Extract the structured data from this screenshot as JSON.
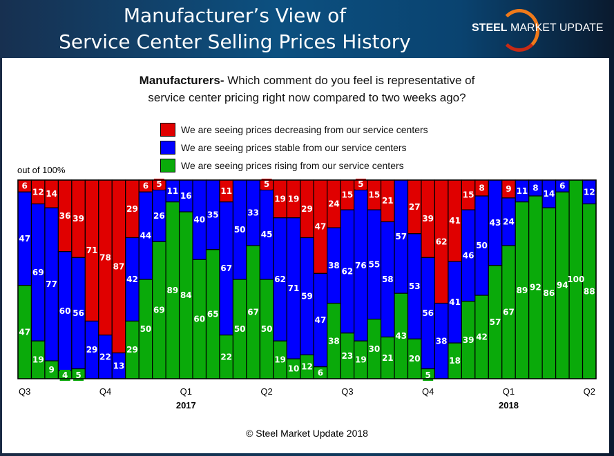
{
  "header": {
    "title_line1": "Manufacturer’s View of",
    "title_line2": "Service Center Selling Prices History",
    "logo": "STEEL MARKET UPDATE"
  },
  "question": {
    "bold": "Manufacturers-",
    "line1": " Which comment do you feel is representative of",
    "line2": "service center pricing right now compared to two weeks ago?"
  },
  "footer": {
    "copyright": "© Steel Market Update 2018"
  },
  "chart_data": {
    "type": "bar",
    "stacked": true,
    "ylabel": "out of 100%",
    "ylim": [
      0,
      100
    ],
    "colors": {
      "decreasing": "#e00000",
      "stable": "#0000ff",
      "rising": "#0aaa0a"
    },
    "legend": [
      "We are seeing prices decreasing from our service centers",
      "We are seeing prices stable from our service centers",
      "We are seeing prices rising from our service centers"
    ],
    "x_ticks": [
      {
        "bar": 0,
        "label": "Q3"
      },
      {
        "bar": 6,
        "label": "Q4"
      },
      {
        "bar": 12,
        "label": "Q1",
        "year": "2017"
      },
      {
        "bar": 18,
        "label": "Q2"
      },
      {
        "bar": 24,
        "label": "Q3"
      },
      {
        "bar": 30,
        "label": "Q4"
      },
      {
        "bar": 36,
        "label": "Q1",
        "year": "2018"
      },
      {
        "bar": 42,
        "label": "Q2"
      }
    ],
    "series": [
      {
        "name": "We are seeing prices decreasing from our service centers",
        "values": [
          6,
          12,
          14,
          36,
          39,
          71,
          78,
          87,
          29,
          6,
          5,
          0,
          0,
          0,
          0,
          11,
          0,
          0,
          5,
          19,
          19,
          29,
          47,
          24,
          15,
          5,
          15,
          21,
          0,
          27,
          39,
          62,
          41,
          15,
          8,
          0,
          9,
          0,
          0,
          0,
          0,
          0,
          0
        ]
      },
      {
        "name": "We are seeing prices stable from our service centers",
        "values": [
          47,
          69,
          77,
          60,
          56,
          29,
          22,
          13,
          42,
          44,
          26,
          11,
          16,
          40,
          35,
          67,
          50,
          33,
          45,
          62,
          71,
          59,
          47,
          38,
          62,
          76,
          55,
          58,
          57,
          53,
          56,
          38,
          41,
          46,
          50,
          43,
          24,
          11,
          8,
          14,
          6,
          0,
          12
        ]
      },
      {
        "name": "We are seeing prices rising from our service centers",
        "values": [
          47,
          19,
          9,
          4,
          5,
          0,
          0,
          0,
          29,
          50,
          69,
          89,
          84,
          60,
          65,
          22,
          50,
          67,
          50,
          19,
          10,
          12,
          6,
          38,
          23,
          19,
          30,
          21,
          43,
          20,
          5,
          0,
          18,
          39,
          42,
          57,
          67,
          89,
          92,
          86,
          94,
          100,
          88
        ]
      }
    ]
  }
}
